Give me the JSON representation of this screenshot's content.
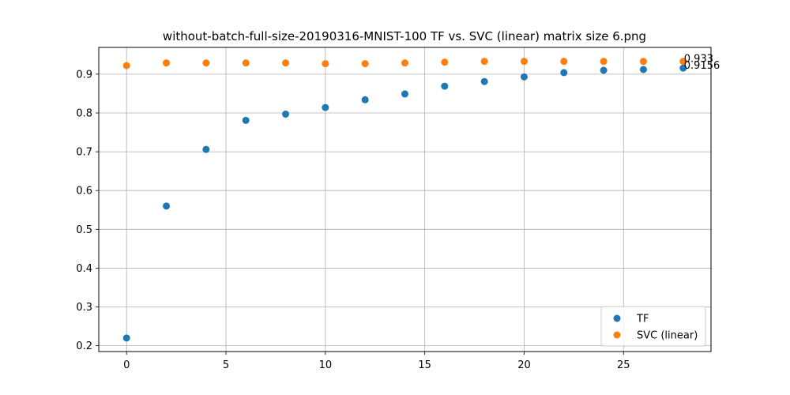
{
  "chart_data": {
    "type": "scatter",
    "title": "without-batch-full-size-20190316-MNIST-100 TF vs. SVC (linear) matrix size 6.png",
    "xlabel": "",
    "ylabel": "",
    "xlim": [
      -1.4,
      29.4
    ],
    "ylim": [
      0.185,
      0.969
    ],
    "x_ticks": [
      0,
      5,
      10,
      15,
      20,
      25
    ],
    "y_ticks": [
      0.2,
      0.3,
      0.4,
      0.5,
      0.6,
      0.7,
      0.8,
      0.9
    ],
    "grid": true,
    "legend_position": "lower-right",
    "series": [
      {
        "name": "TF",
        "color": "#1f77b4",
        "x": [
          0,
          2,
          4,
          6,
          8,
          10,
          12,
          14,
          16,
          18,
          20,
          22,
          24,
          26,
          28
        ],
        "y": [
          0.22,
          0.56,
          0.706,
          0.781,
          0.797,
          0.814,
          0.834,
          0.849,
          0.869,
          0.881,
          0.893,
          0.904,
          0.91,
          0.912,
          0.9156
        ]
      },
      {
        "name": "SVC (linear)",
        "color": "#ff7f0e",
        "x": [
          0,
          2,
          4,
          6,
          8,
          10,
          12,
          14,
          16,
          18,
          20,
          22,
          24,
          26,
          28
        ],
        "y": [
          0.922,
          0.929,
          0.929,
          0.929,
          0.929,
          0.927,
          0.927,
          0.929,
          0.931,
          0.933,
          0.933,
          0.933,
          0.933,
          0.933,
          0.933
        ]
      }
    ],
    "annotations": [
      {
        "text": "0.933",
        "x": 28,
        "y": 0.933
      },
      {
        "text": "0.9156",
        "x": 28,
        "y": 0.9156
      }
    ]
  }
}
